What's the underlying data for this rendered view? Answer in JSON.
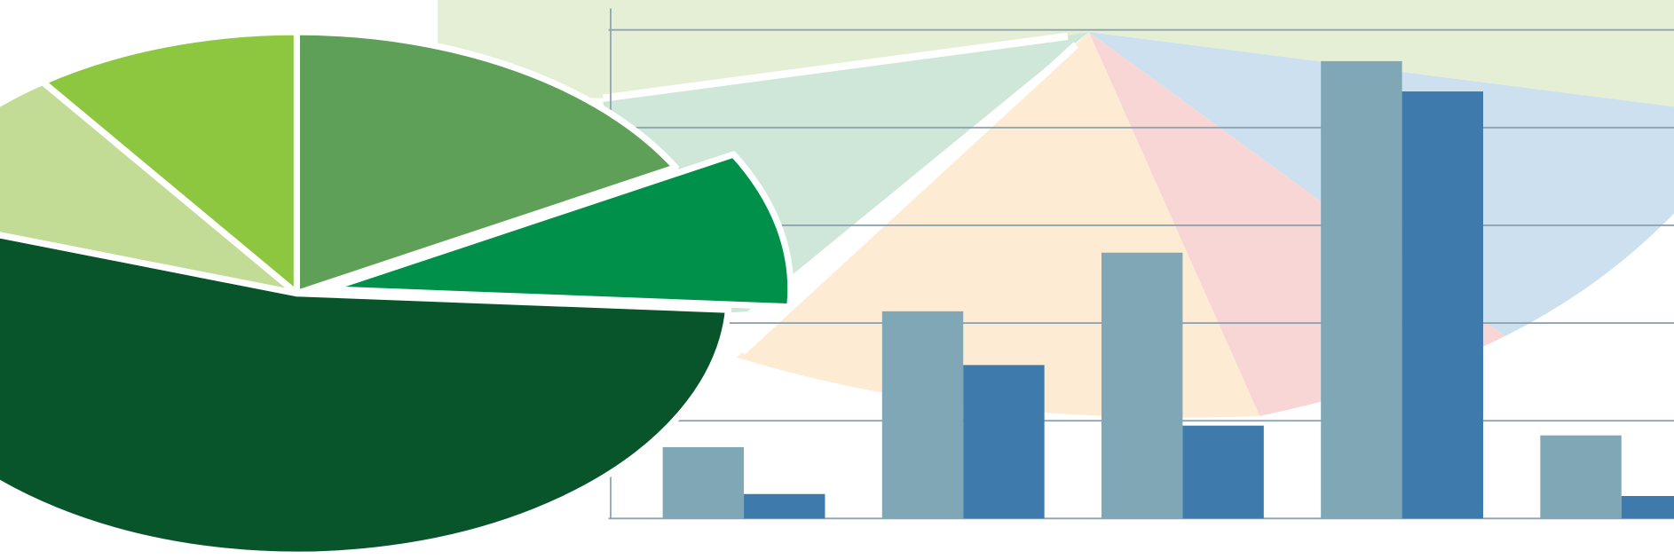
{
  "chart_data": [
    {
      "type": "bar",
      "categories": [
        null,
        null,
        null,
        null,
        null
      ],
      "series": [
        {
          "color": "#80a7b6",
          "values": [
            0.73,
            2.12,
            2.72,
            4.68,
            0.85
          ]
        },
        {
          "color": "#3f7aac",
          "values": [
            0.25,
            1.57,
            0.95,
            4.37,
            0.23
          ]
        }
      ],
      "ylim": [
        0,
        5
      ],
      "yticks": [
        0,
        1,
        2,
        3,
        4,
        5
      ],
      "grid": true
    },
    {
      "type": "pie",
      "values": [
        17,
        9,
        54,
        10,
        10
      ],
      "colors": [
        "#5fa058",
        "#00904a",
        "#08552b",
        "#c3dc95",
        "#8dc63f"
      ]
    }
  ]
}
